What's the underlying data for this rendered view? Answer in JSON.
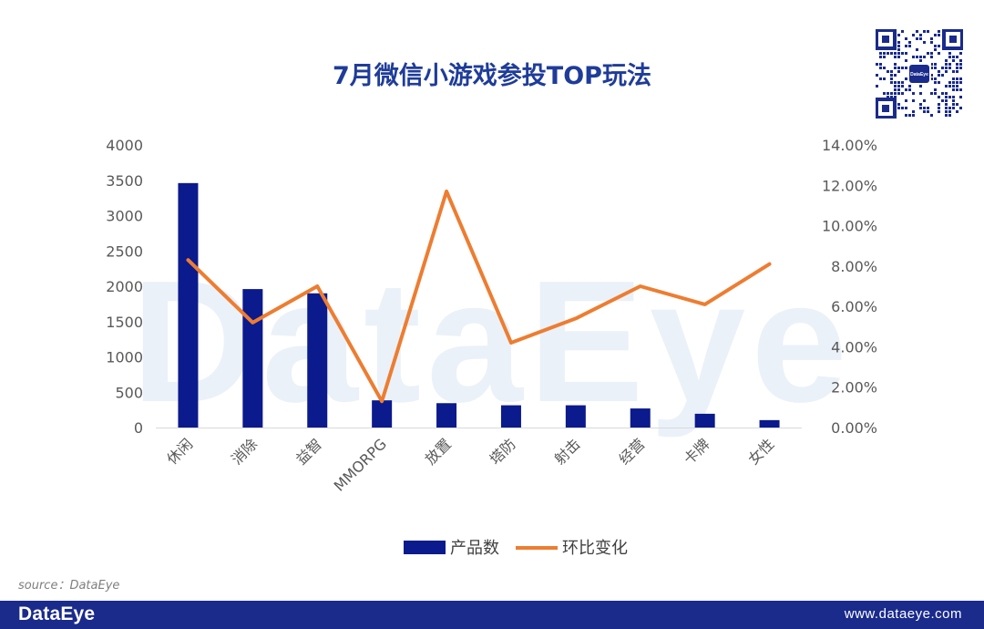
{
  "colors": {
    "bar": "#0b1a8c",
    "line": "#ed7d31",
    "title": "#1f3c99",
    "footer": "#1a2b8c",
    "watermark": "#dbe6f5"
  },
  "watermark_text": "DataEye",
  "source_text": "source：DataEye",
  "footer": {
    "logo": "DataEye",
    "url": "www.dataeye.com"
  },
  "qr_logo": "DataEye",
  "chart_data": {
    "type": "bar+line",
    "title": "7月微信小游戏参投TOP玩法",
    "categories": [
      "休闲",
      "消除",
      "益智",
      "MMORPG",
      "放置",
      "塔防",
      "射击",
      "经营",
      "卡牌",
      "女性"
    ],
    "series": [
      {
        "name": "产品数",
        "type": "bar",
        "axis": "left",
        "values": [
          3460,
          1960,
          1900,
          385,
          345,
          315,
          315,
          270,
          195,
          105
        ]
      },
      {
        "name": "环比变化",
        "type": "line",
        "axis": "right",
        "values": [
          8.3,
          5.2,
          7.0,
          1.3,
          11.7,
          4.2,
          5.4,
          7.0,
          6.1,
          8.1
        ]
      }
    ],
    "y_left": {
      "min": 0,
      "max": 4000,
      "ticks": [
        0,
        500,
        1000,
        1500,
        2000,
        2500,
        3000,
        3500,
        4000
      ]
    },
    "y_right": {
      "min": 0,
      "max": 14,
      "ticks": [
        "0.00%",
        "2.00%",
        "4.00%",
        "6.00%",
        "8.00%",
        "10.00%",
        "12.00%",
        "14.00%"
      ]
    },
    "legend_position": "bottom",
    "grid": false
  }
}
